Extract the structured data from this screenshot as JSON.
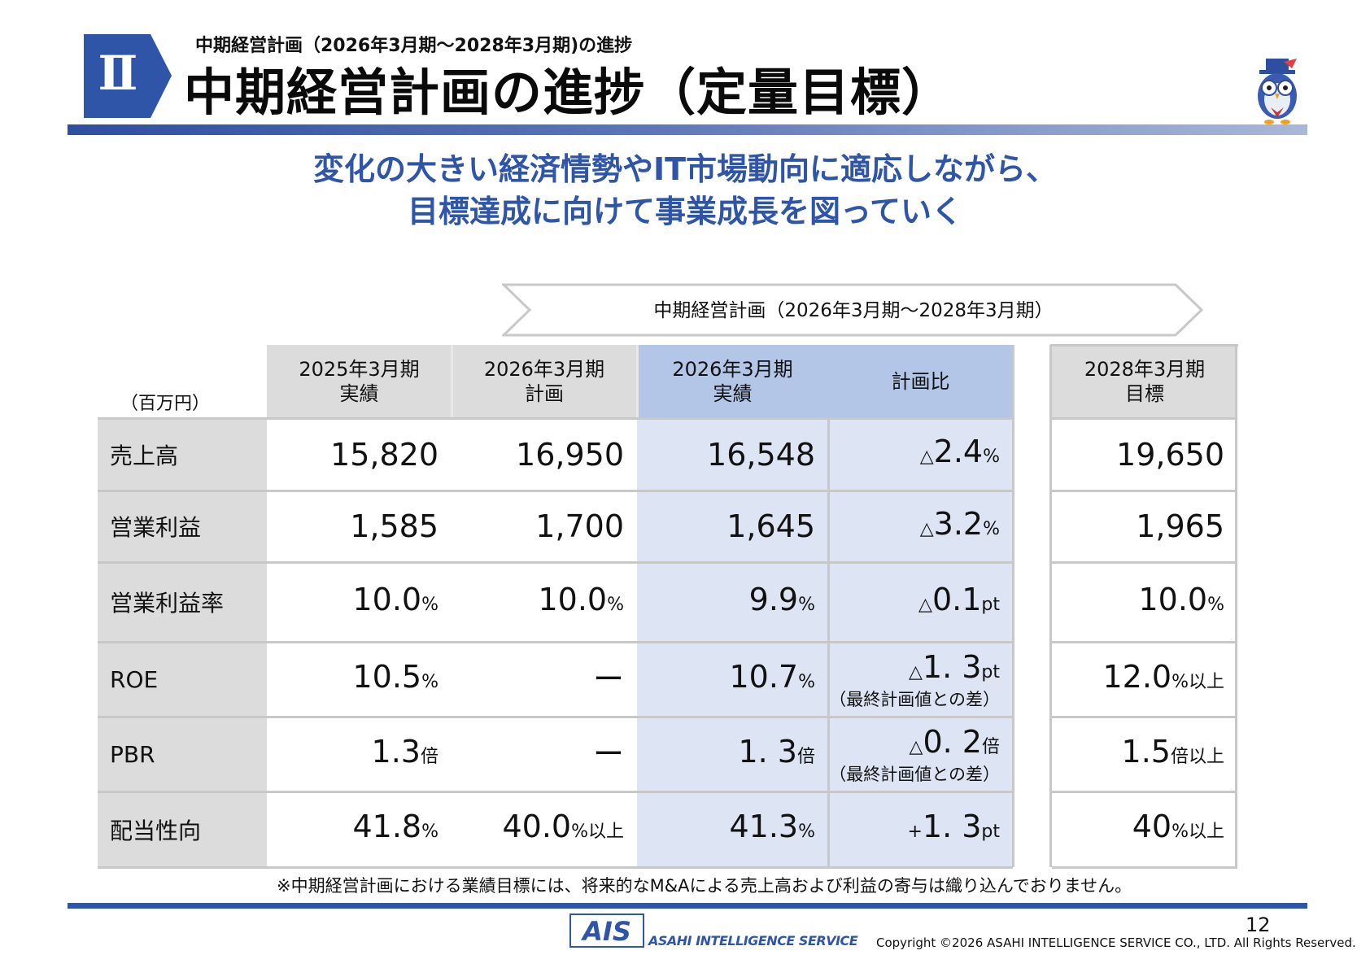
{
  "header": {
    "section_numeral": "Ⅱ",
    "subtitle": "中期経営計画（2026年3月期～2028年3月期)の進捗",
    "title": "中期経営計画の進捗（定量目標）"
  },
  "message": {
    "line1": "変化の大きい経済情勢やIT市場動向に適応しながら、",
    "line2": "目標達成に向けて事業成長を図っていく"
  },
  "plan_banner": "中期経営計画（2026年3月期～2028年3月期）",
  "table": {
    "unit_label": "（百万円）",
    "headers": [
      {
        "line1": "2025年3月期",
        "line2": "実績"
      },
      {
        "line1": "2026年3月期",
        "line2": "計画"
      },
      {
        "line1": "2026年3月期",
        "line2": "実績"
      },
      {
        "line1": "計画比",
        "line2": ""
      },
      {
        "line1": "2028年3月期",
        "line2": "目標"
      }
    ],
    "rows": [
      {
        "label": "売上高",
        "c1": {
          "v": "15,820",
          "u": ""
        },
        "c2": {
          "v": "16,950",
          "u": ""
        },
        "c3": {
          "v": "16,548",
          "u": ""
        },
        "c4": {
          "p": "△",
          "v": "2.4",
          "u": "%",
          "n": ""
        },
        "c5": {
          "v": "19,650",
          "u": ""
        }
      },
      {
        "label": "営業利益",
        "c1": {
          "v": "1,585",
          "u": ""
        },
        "c2": {
          "v": "1,700",
          "u": ""
        },
        "c3": {
          "v": "1,645",
          "u": ""
        },
        "c4": {
          "p": "△",
          "v": "3.2",
          "u": "%",
          "n": ""
        },
        "c5": {
          "v": "1,965",
          "u": ""
        }
      },
      {
        "label": "営業利益率",
        "c1": {
          "v": "10.0",
          "u": "%"
        },
        "c2": {
          "v": "10.0",
          "u": "%"
        },
        "c3": {
          "v": "9.9",
          "u": "%"
        },
        "c4": {
          "p": "△",
          "v": "0.1",
          "u": "pt",
          "n": ""
        },
        "c5": {
          "v": "10.0",
          "u": "%"
        }
      },
      {
        "label": "ROE",
        "c1": {
          "v": "10.5",
          "u": "%"
        },
        "c2": {
          "v": "ー",
          "u": ""
        },
        "c3": {
          "v": "10.7",
          "u": "%"
        },
        "c4": {
          "p": "△",
          "v": "1. 3",
          "u": "pt",
          "n": "（最終計画値との差）"
        },
        "c5": {
          "v": "12.0",
          "u": "%以上"
        }
      },
      {
        "label": "PBR",
        "c1": {
          "v": "1.3",
          "u": "倍"
        },
        "c2": {
          "v": "ー",
          "u": ""
        },
        "c3": {
          "v": "1. 3",
          "u": "倍"
        },
        "c4": {
          "p": "△",
          "v": "0. 2",
          "u": "倍",
          "n": "（最終計画値との差）"
        },
        "c5": {
          "v": "1.5",
          "u": "倍以上"
        }
      },
      {
        "label": "配当性向",
        "c1": {
          "v": "41.8",
          "u": "%"
        },
        "c2": {
          "v": "40.0",
          "u": "%以上"
        },
        "c3": {
          "v": "41.3",
          "u": "%"
        },
        "c4": {
          "p": "+",
          "v": "1. 3",
          "u": "pt",
          "n": ""
        },
        "c5": {
          "v": "40",
          "u": "%以上"
        }
      }
    ]
  },
  "footnote": "※中期経営計画における業績目標には、将来的なM&Aによる売上高および利益の寄与は織り込んでおりません。",
  "footer": {
    "logo": "AIS",
    "logo_tagline": "ASAHI INTELLIGENCE SERVICE",
    "page_number": "12",
    "copyright": "Copyright ©2026 ASAHI INTELLIGENCE SERVICE CO., LTD. All Rights Reserved."
  },
  "colors": {
    "brand_blue": "#2e55a8",
    "highlight": "#dde5f4",
    "header_highlight": "#b4c6e7",
    "label_gray": "#dcdcdc"
  }
}
